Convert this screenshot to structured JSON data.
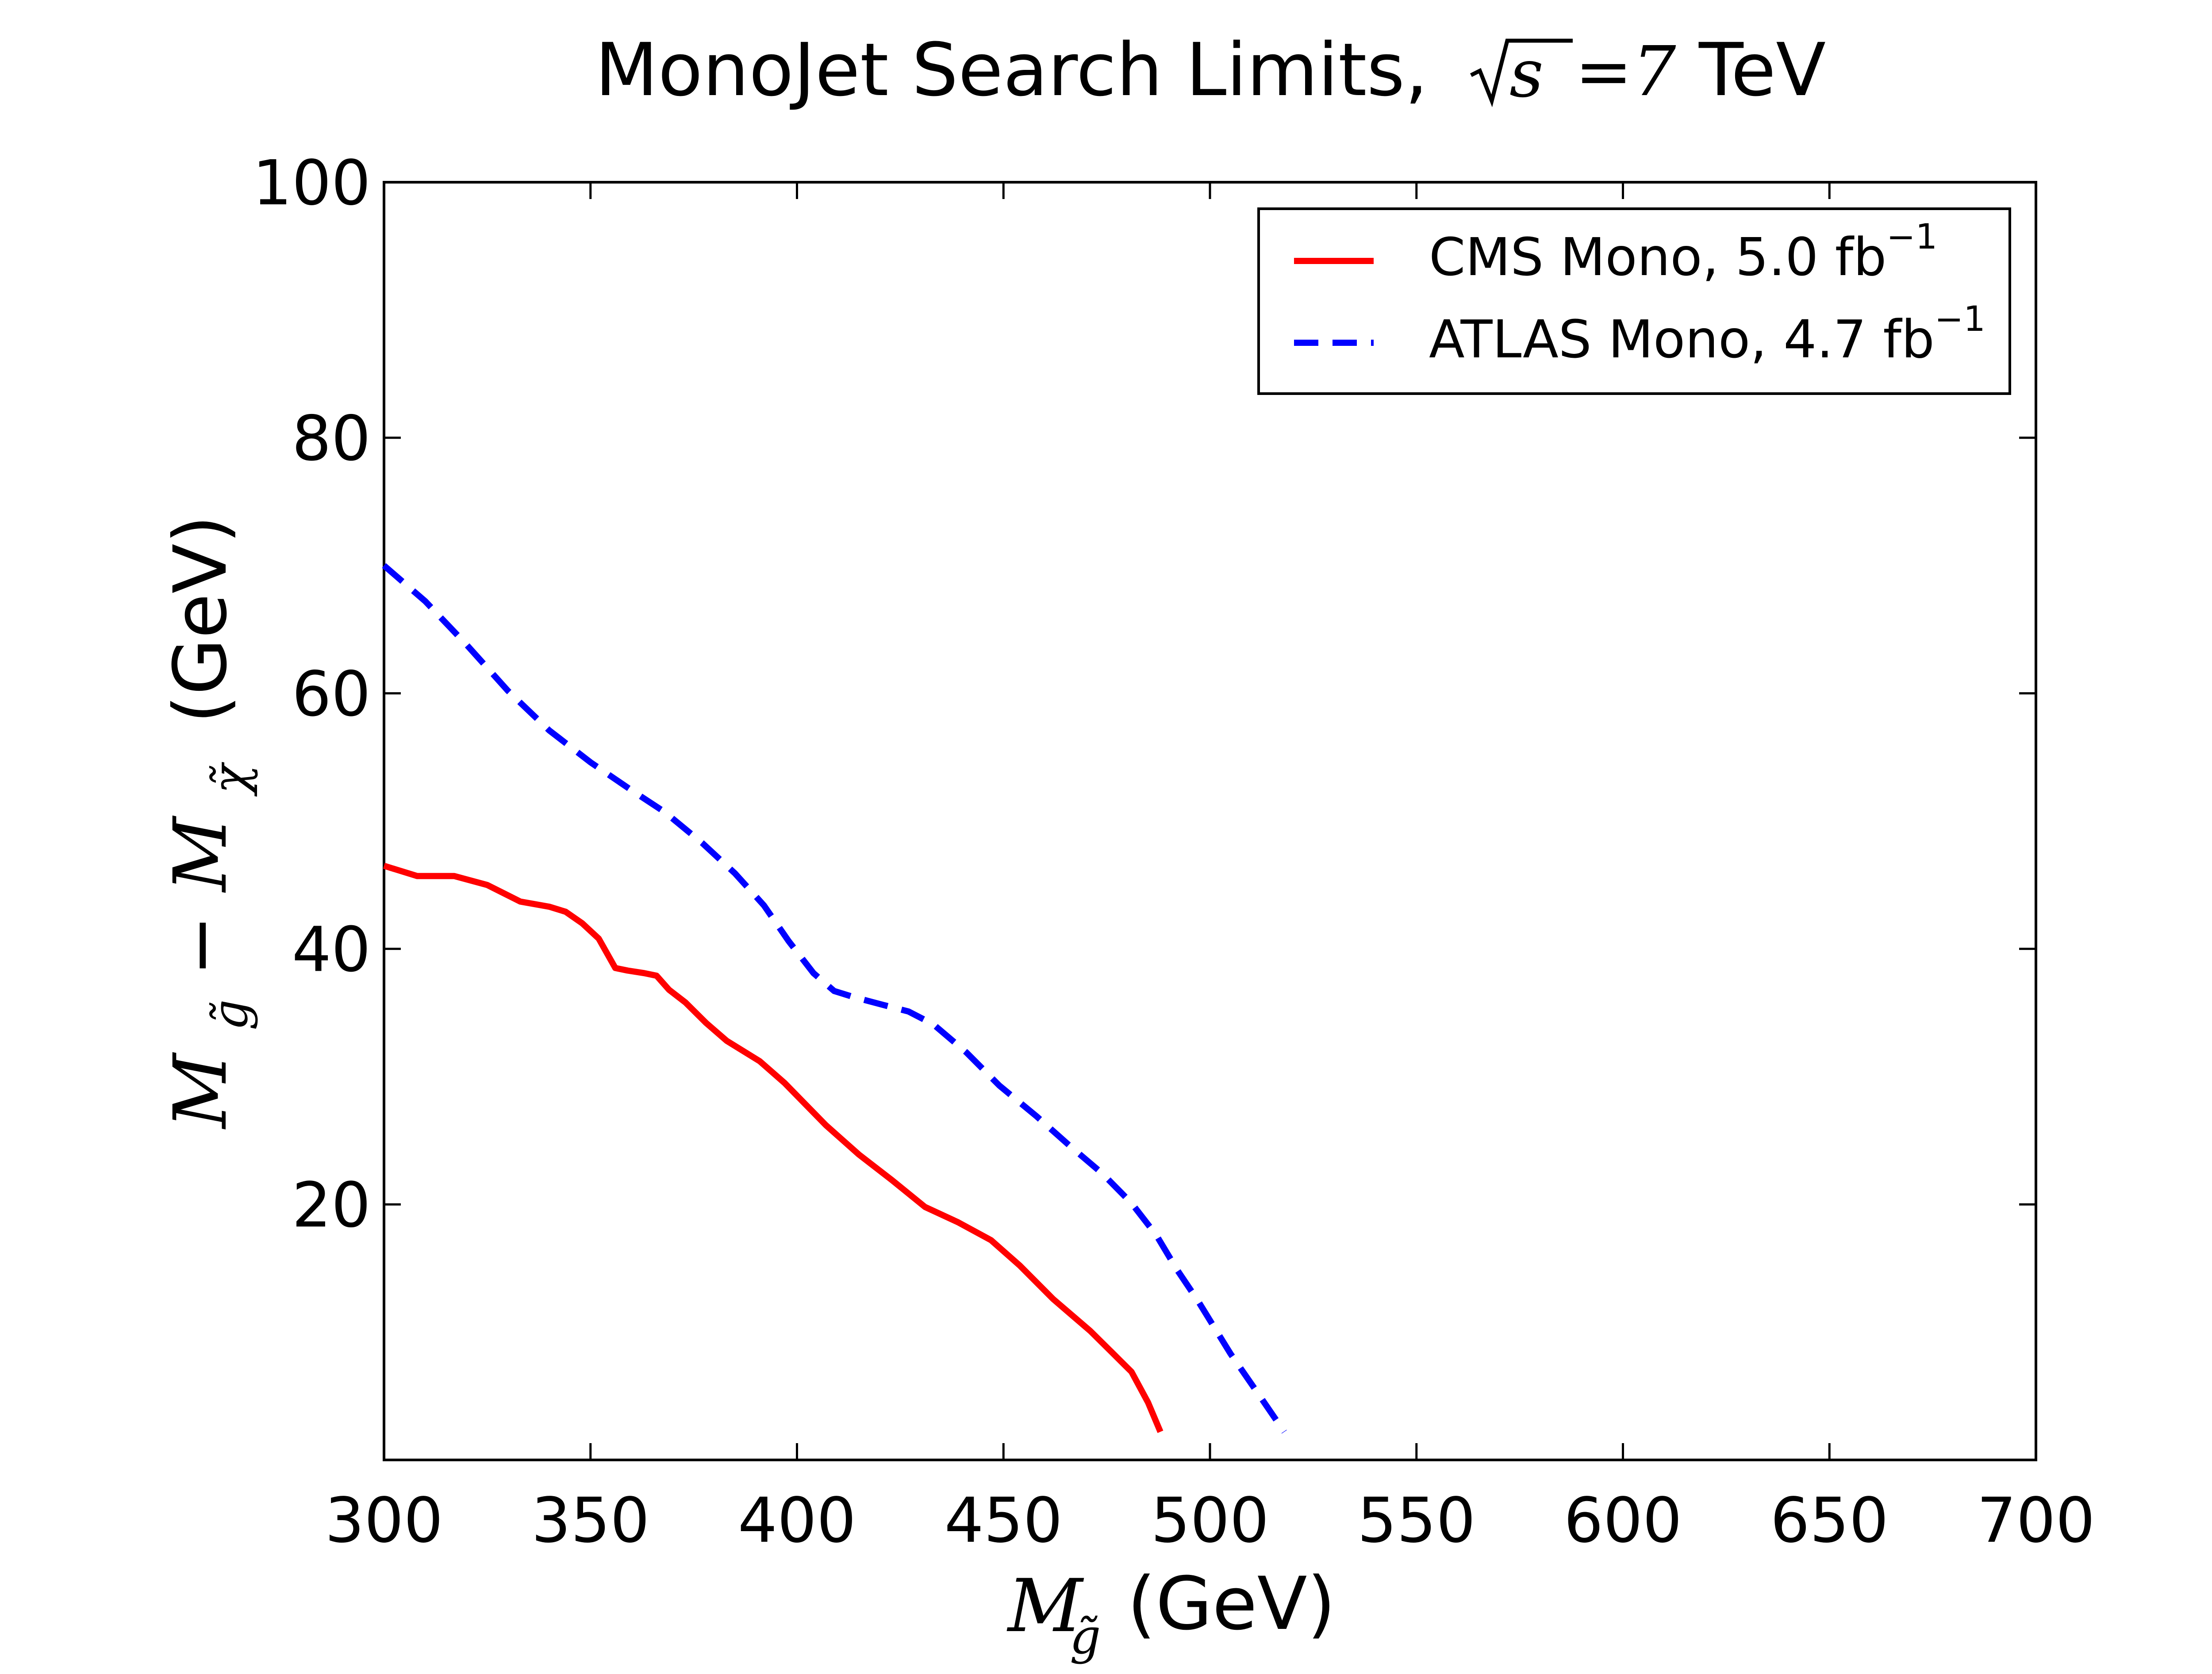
{
  "chart_data": {
    "type": "line",
    "title": {
      "prefix": "MonoJet Search Limits,",
      "sqrt_arg": "s",
      "equals": "=7",
      "unit": "TeV"
    },
    "xlabel": {
      "symbol": "M",
      "subscript": "g̃",
      "unit": "(GeV)"
    },
    "ylabel": {
      "symbol1": "M",
      "subscript1": "g̃",
      "minus": "−",
      "symbol2": "M",
      "subscript2": "χ̃",
      "unit": "(GeV)"
    },
    "xlim": [
      300,
      700
    ],
    "ylim": [
      0,
      100
    ],
    "xticks": [
      300,
      350,
      400,
      450,
      500,
      550,
      600,
      650,
      700
    ],
    "xtick_labels": [
      "300",
      "350",
      "400",
      "450",
      "500",
      "550",
      "600",
      "650",
      "700"
    ],
    "yticks": [
      20,
      40,
      60,
      80,
      100
    ],
    "ytick_labels": [
      "20",
      "40",
      "60",
      "80",
      "100"
    ],
    "grid": false,
    "legend_position": "top-right",
    "series": [
      {
        "name": "CMS Mono, 5.0 fb",
        "name_sup": "−1",
        "color": "#ff0000",
        "style": "solid",
        "x": [
          300,
          308,
          317,
          325,
          333,
          340,
          344,
          348,
          352,
          356,
          359,
          363,
          366,
          369,
          373,
          378,
          383,
          391,
          397,
          407,
          415,
          423,
          431,
          439,
          447,
          454,
          462,
          471,
          476,
          481,
          485,
          488
        ],
        "y": [
          46.5,
          45.7,
          45.7,
          45,
          43.7,
          43.3,
          42.9,
          42,
          40.8,
          38.5,
          38.3,
          38.1,
          37.9,
          36.8,
          35.8,
          34.2,
          32.8,
          31.2,
          29.5,
          26.2,
          23.9,
          21.9,
          19.8,
          18.6,
          17.2,
          15.2,
          12.6,
          10.1,
          8.5,
          6.9,
          4.5,
          2.2
        ]
      },
      {
        "name": "ATLAS Mono, 4.7 fb",
        "name_sup": "−1",
        "color": "#0000ff",
        "style": "dashed",
        "x": [
          300,
          310,
          320,
          330,
          340,
          350,
          360,
          368,
          377,
          385,
          392,
          398,
          404,
          409,
          414,
          421,
          427,
          433,
          441,
          449,
          458,
          466,
          474,
          481,
          487,
          492,
          497,
          505,
          511,
          518
        ],
        "y": [
          70,
          67.2,
          63.8,
          60.2,
          57.1,
          54.6,
          52.4,
          50.7,
          48.3,
          45.9,
          43.4,
          40.6,
          38.1,
          36.7,
          36.2,
          35.6,
          35.1,
          34.1,
          31.9,
          29.3,
          26.9,
          24.6,
          22.4,
          20.1,
          17.6,
          14.9,
          12.5,
          8.3,
          5.5,
          2.2
        ]
      }
    ]
  }
}
